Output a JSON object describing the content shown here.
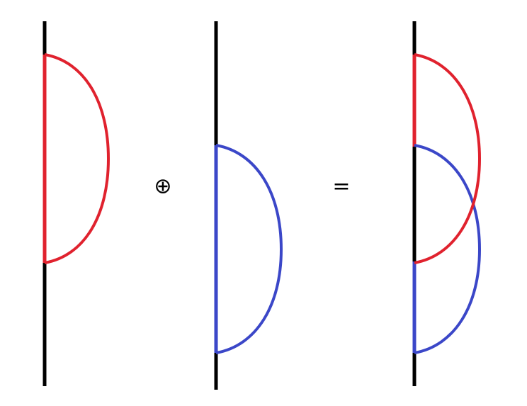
{
  "diagram": {
    "operators": {
      "direct_sum": "⊕",
      "equals": "="
    },
    "colors": {
      "line": "#000000",
      "first_arc": "#e0222e",
      "second_arc": "#3b47c8",
      "background": "#ffffff"
    },
    "panels": [
      {
        "name": "left-term",
        "arcs": [
          "first_arc"
        ]
      },
      {
        "name": "middle-term",
        "arcs": [
          "second_arc"
        ]
      },
      {
        "name": "result",
        "arcs": [
          "first_arc",
          "second_arc"
        ]
      }
    ]
  }
}
